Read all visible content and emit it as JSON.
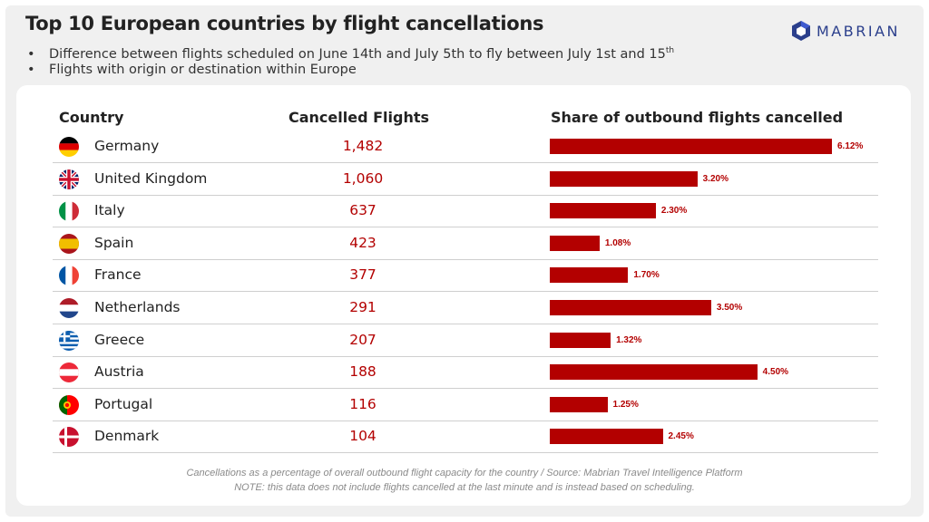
{
  "header": {
    "title": "Top 10 European countries by flight cancellations",
    "bullet1": "Difference between flights scheduled on June 14th and July 5th to fly between July 1st and 15",
    "bullet1_sup": "th",
    "bullet2": "Flights with origin or destination within Europe",
    "bullet_glyph": "•"
  },
  "logo": {
    "text": "MABRIAN",
    "color": "#2b3f8c"
  },
  "columns": {
    "country": "Country",
    "cancelled": "Cancelled Flights",
    "share": "Share of outbound flights cancelled"
  },
  "footer": {
    "note1": "Cancellations as a percentage of overall outbound flight capacity for the country / Source: Mabrian Travel Intelligence Platform",
    "note2": "NOTE: this data does not include flights cancelled at the last minute and is instead based on scheduling."
  },
  "colors": {
    "bar": "#b30000",
    "cancelled_text": "#b30000"
  },
  "chart_data": {
    "type": "table",
    "title": "Top 10 European countries by flight cancellations",
    "rows": [
      {
        "country": "Germany",
        "flag": "germany-flag",
        "cancelled": "1,482",
        "share": 6.12,
        "share_label": "6.12%"
      },
      {
        "country": "United Kingdom",
        "flag": "uk-flag",
        "cancelled": "1,060",
        "share": 3.2,
        "share_label": "3.20%"
      },
      {
        "country": "Italy",
        "flag": "italy-flag",
        "cancelled": "637",
        "share": 2.3,
        "share_label": "2.30%"
      },
      {
        "country": "Spain",
        "flag": "spain-flag",
        "cancelled": "423",
        "share": 1.08,
        "share_label": "1.08%"
      },
      {
        "country": "France",
        "flag": "france-flag",
        "cancelled": "377",
        "share": 1.7,
        "share_label": "1.70%"
      },
      {
        "country": "Netherlands",
        "flag": "netherlands-flag",
        "cancelled": "291",
        "share": 3.5,
        "share_label": "3.50%"
      },
      {
        "country": "Greece",
        "flag": "greece-flag",
        "cancelled": "207",
        "share": 1.32,
        "share_label": "1.32%"
      },
      {
        "country": "Austria",
        "flag": "austria-flag",
        "cancelled": "188",
        "share": 4.5,
        "share_label": "4.50%"
      },
      {
        "country": "Portugal",
        "flag": "portugal-flag",
        "cancelled": "116",
        "share": 1.25,
        "share_label": "1.25%"
      },
      {
        "country": "Denmark",
        "flag": "denmark-flag",
        "cancelled": "104",
        "share": 2.45,
        "share_label": "2.45%"
      }
    ]
  }
}
